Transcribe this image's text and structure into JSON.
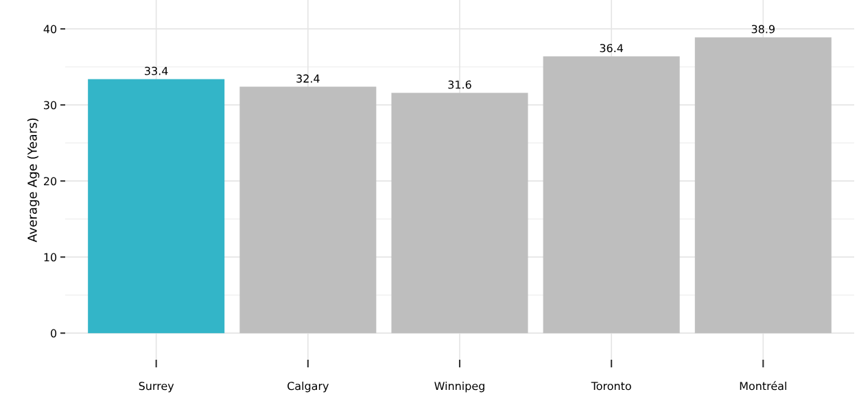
{
  "chart_data": {
    "type": "bar",
    "ylabel": "Average Age (Years)",
    "categories": [
      "Surrey",
      "Calgary",
      "Winnipeg",
      "Toronto",
      "Montréal"
    ],
    "values": [
      33.4,
      32.4,
      31.6,
      36.4,
      38.9
    ],
    "colors": [
      "#33b5c8",
      "#bebebe",
      "#bebebe",
      "#bebebe",
      "#bebebe"
    ],
    "ylim": [
      -3.5,
      43.8
    ],
    "yticks": [
      0,
      10,
      20,
      30,
      40
    ],
    "grid": true,
    "data_labels": true
  }
}
